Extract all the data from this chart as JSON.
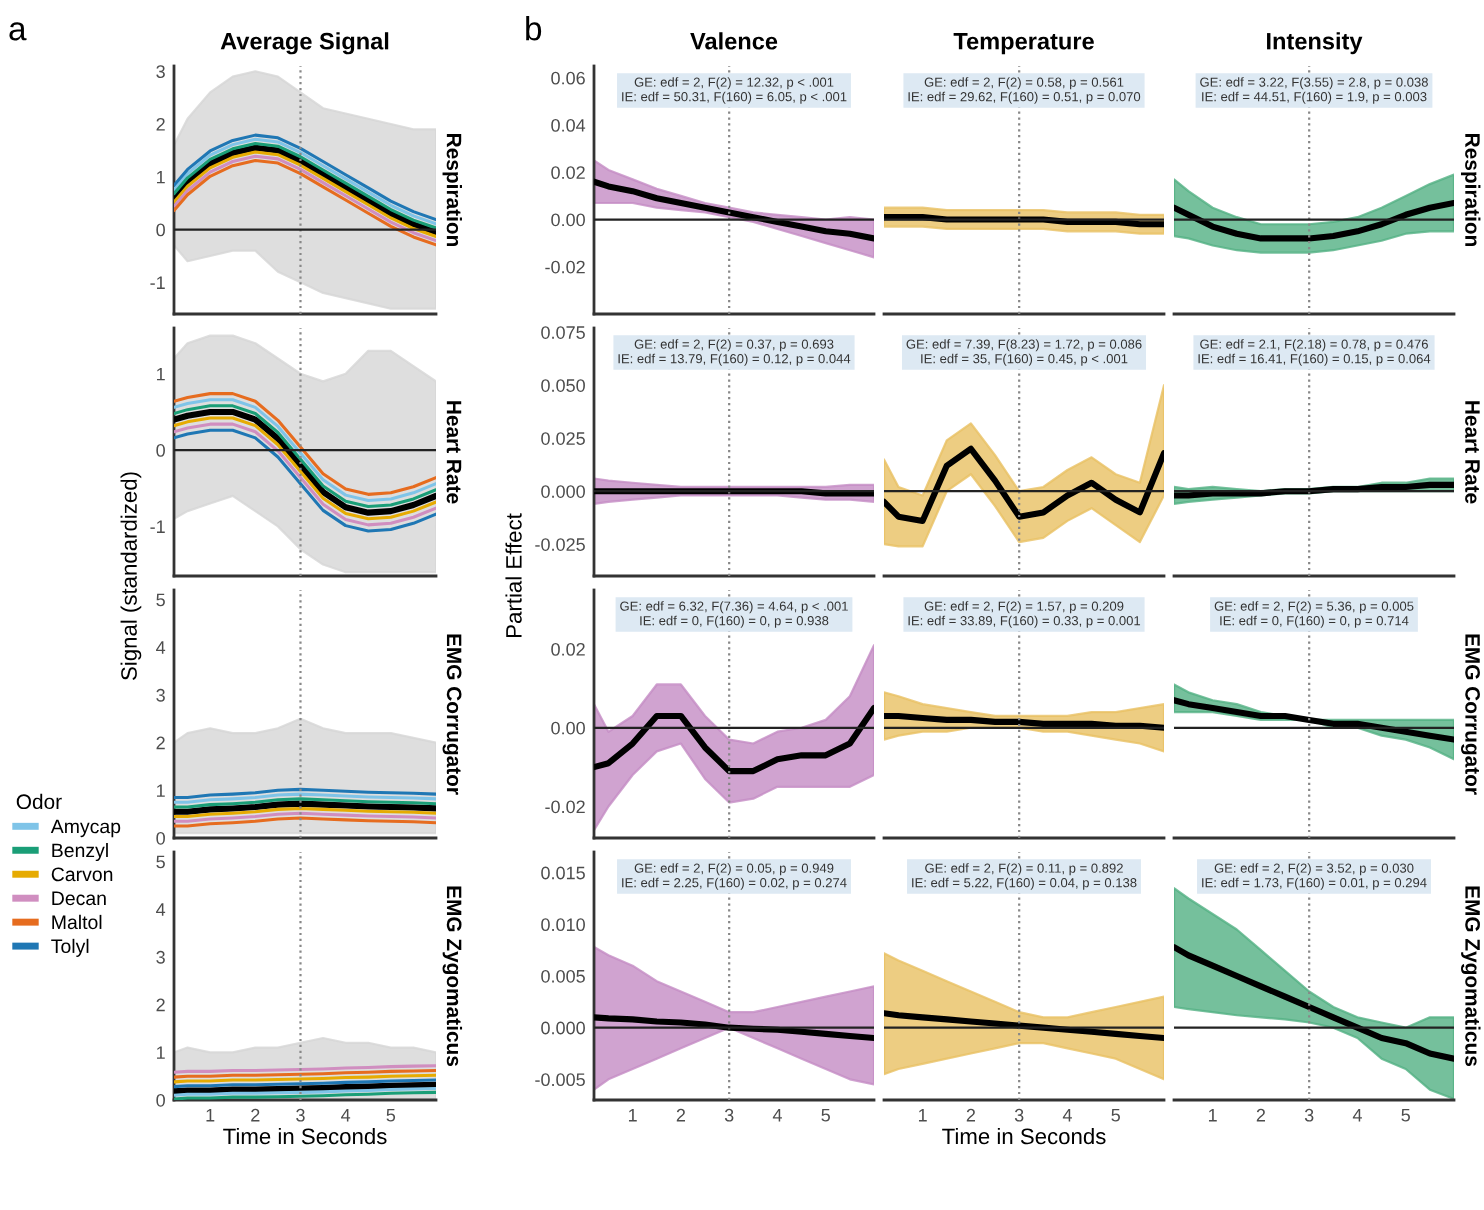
{
  "chart_data": [
    {
      "type": "line",
      "title": "Average Signal",
      "y2label": "Respiration",
      "x": [
        0.2,
        0.5,
        1,
        1.5,
        2,
        2.5,
        3,
        3.5,
        4,
        4.5,
        5,
        5.5,
        6
      ],
      "xlim": [
        0.2,
        6
      ],
      "ylim": [
        -1.6,
        3.1
      ],
      "yticks": [
        -1,
        0,
        1,
        2,
        3
      ],
      "tick_labels": "y",
      "color": "#d6d6d6",
      "series": [
        {
          "color": "#7fc4e8",
          "values": [
            0.76,
            1.06,
            1.41,
            1.61,
            1.71,
            1.66,
            1.46,
            1.21,
            0.96,
            0.71,
            0.46,
            0.26,
            0.11
          ]
        },
        {
          "color": "#1a9e77",
          "values": [
            0.68,
            0.98,
            1.33,
            1.53,
            1.63,
            1.58,
            1.38,
            1.13,
            0.88,
            0.63,
            0.38,
            0.18,
            0.03
          ]
        },
        {
          "color": "#e6ab02",
          "values": [
            0.52,
            0.82,
            1.17,
            1.37,
            1.47,
            1.42,
            1.22,
            0.97,
            0.72,
            0.47,
            0.22,
            0.02,
            -0.13
          ]
        },
        {
          "color": "#d08ec0",
          "values": [
            0.44,
            0.74,
            1.09,
            1.29,
            1.39,
            1.34,
            1.14,
            0.89,
            0.64,
            0.39,
            0.14,
            -0.06,
            -0.21
          ]
        },
        {
          "color": "#e66c1f",
          "values": [
            0.36,
            0.66,
            1.01,
            1.21,
            1.31,
            1.26,
            1.06,
            0.81,
            0.56,
            0.31,
            0.06,
            -0.14,
            -0.29
          ]
        },
        {
          "color": "#1f77b4",
          "values": [
            0.84,
            1.14,
            1.49,
            1.69,
            1.79,
            1.74,
            1.54,
            1.29,
            1.04,
            0.79,
            0.54,
            0.34,
            0.19
          ]
        },
        {
          "color": "#000000",
          "values": [
            0.6,
            0.9,
            1.25,
            1.45,
            1.55,
            1.5,
            1.3,
            1.05,
            0.8,
            0.55,
            0.3,
            0.1,
            -0.05
          ],
          "lower": [
            -0.3,
            -0.6,
            -0.5,
            -0.4,
            -0.4,
            -0.8,
            -1.0,
            -1.2,
            -1.3,
            -1.4,
            -1.5,
            -1.5,
            -1.5
          ],
          "upper": [
            1.6,
            2.1,
            2.6,
            2.9,
            3.0,
            2.9,
            2.6,
            2.3,
            2.2,
            2.1,
            2.0,
            1.9,
            1.9
          ]
        }
      ],
      "ref_lines": [
        {
          "axis": "x",
          "value": 3,
          "color": "#888888",
          "line_style": "dotted"
        },
        {
          "axis": "y",
          "value": 0,
          "color": "#222222",
          "line_style": "solid"
        }
      ]
    },
    {
      "type": "line",
      "y2label": "Heart Rate",
      "ylabel": "Signal (standardized)",
      "x": [
        0.2,
        0.5,
        1,
        1.5,
        2,
        2.5,
        3,
        3.5,
        4,
        4.5,
        5,
        5.5,
        6
      ],
      "xlim": [
        0.2,
        6
      ],
      "ylim": [
        -1.65,
        1.6
      ],
      "yticks": [
        -1,
        0,
        1
      ],
      "tick_labels": "y",
      "color": "#d6d6d6",
      "series": [
        {
          "color": "#7fc4e8",
          "values": [
            0.56,
            0.61,
            0.66,
            0.66,
            0.56,
            0.31,
            -0.04,
            -0.39,
            -0.59,
            -0.66,
            -0.64,
            -0.56,
            -0.44
          ]
        },
        {
          "color": "#1a9e77",
          "values": [
            0.48,
            0.53,
            0.58,
            0.58,
            0.48,
            0.23,
            -0.12,
            -0.47,
            -0.67,
            -0.74,
            -0.72,
            -0.64,
            -0.52
          ]
        },
        {
          "color": "#e6ab02",
          "values": [
            0.32,
            0.37,
            0.42,
            0.42,
            0.32,
            0.07,
            -0.28,
            -0.63,
            -0.83,
            -0.9,
            -0.88,
            -0.8,
            -0.68
          ]
        },
        {
          "color": "#d08ec0",
          "values": [
            0.24,
            0.29,
            0.34,
            0.34,
            0.24,
            -0.01,
            -0.36,
            -0.71,
            -0.91,
            -0.98,
            -0.96,
            -0.88,
            -0.76
          ]
        },
        {
          "color": "#e66c1f",
          "values": [
            0.64,
            0.69,
            0.74,
            0.74,
            0.64,
            0.39,
            0.04,
            -0.31,
            -0.51,
            -0.58,
            -0.56,
            -0.48,
            -0.36
          ]
        },
        {
          "color": "#1f77b4",
          "values": [
            0.16,
            0.21,
            0.26,
            0.26,
            0.16,
            -0.09,
            -0.44,
            -0.79,
            -0.99,
            -1.06,
            -1.04,
            -0.96,
            -0.84
          ]
        },
        {
          "color": "#000000",
          "values": [
            0.4,
            0.45,
            0.5,
            0.5,
            0.4,
            0.15,
            -0.2,
            -0.55,
            -0.75,
            -0.82,
            -0.8,
            -0.72,
            -0.6
          ],
          "lower": [
            -0.9,
            -0.8,
            -0.7,
            -0.6,
            -0.8,
            -1.0,
            -1.3,
            -1.5,
            -1.6,
            -1.6,
            -1.6,
            -1.6,
            -1.6
          ],
          "upper": [
            1.2,
            1.4,
            1.5,
            1.5,
            1.4,
            1.2,
            1.0,
            0.9,
            1.0,
            1.3,
            1.3,
            1.1,
            0.9
          ]
        }
      ],
      "ref_lines": [
        {
          "axis": "x",
          "value": 3,
          "color": "#888888",
          "line_style": "dotted"
        },
        {
          "axis": "y",
          "value": 0,
          "color": "#222222",
          "line_style": "solid"
        }
      ]
    },
    {
      "type": "line",
      "y2label": "EMG Corrugator",
      "x": [
        0.2,
        0.5,
        1,
        1.5,
        2,
        2.5,
        3,
        3.5,
        4,
        4.5,
        5,
        5.5,
        6
      ],
      "xlim": [
        0.2,
        6
      ],
      "ylim": [
        0,
        5.2
      ],
      "yticks": [
        0,
        1,
        2,
        3,
        4,
        5
      ],
      "tick_labels": "y",
      "color": "#d6d6d6",
      "legend": "left",
      "legend_title": "Odor",
      "series": [
        {
          "name": "Amycap",
          "color": "#7fc4e8",
          "values": [
            0.75,
            0.75,
            0.8,
            0.82,
            0.85,
            0.9,
            0.92,
            0.9,
            0.88,
            0.86,
            0.85,
            0.84,
            0.82
          ]
        },
        {
          "name": "Benzyl",
          "color": "#1a9e77",
          "values": [
            0.65,
            0.65,
            0.7,
            0.72,
            0.75,
            0.8,
            0.82,
            0.8,
            0.78,
            0.76,
            0.75,
            0.74,
            0.72
          ]
        },
        {
          "name": "Carvon",
          "color": "#e6ab02",
          "values": [
            0.45,
            0.45,
            0.5,
            0.52,
            0.55,
            0.6,
            0.62,
            0.6,
            0.58,
            0.56,
            0.55,
            0.54,
            0.52
          ]
        },
        {
          "name": "Decan",
          "color": "#d08ec0",
          "values": [
            0.35,
            0.35,
            0.4,
            0.42,
            0.45,
            0.5,
            0.52,
            0.5,
            0.48,
            0.46,
            0.45,
            0.44,
            0.42
          ]
        },
        {
          "name": "Maltol",
          "color": "#e66c1f",
          "values": [
            0.25,
            0.25,
            0.3,
            0.32,
            0.35,
            0.4,
            0.42,
            0.4,
            0.38,
            0.36,
            0.35,
            0.34,
            0.32
          ]
        },
        {
          "name": "Tolyl",
          "color": "#1f77b4",
          "values": [
            0.85,
            0.85,
            0.9,
            0.92,
            0.95,
            1.0,
            1.02,
            1.0,
            0.98,
            0.96,
            0.95,
            0.94,
            0.92
          ]
        },
        {
          "color": "#000000",
          "values": [
            0.55,
            0.55,
            0.6,
            0.62,
            0.65,
            0.7,
            0.72,
            0.7,
            0.68,
            0.66,
            0.65,
            0.64,
            0.62
          ],
          "lower": [
            0.1,
            0.1,
            0.1,
            0.1,
            0.1,
            0.1,
            0.1,
            0.1,
            0.1,
            0.1,
            0.1,
            0.1,
            0.1
          ],
          "upper": [
            2.0,
            2.2,
            2.3,
            2.2,
            2.2,
            2.3,
            2.5,
            2.3,
            2.2,
            2.2,
            2.2,
            2.1,
            2.0
          ]
        }
      ],
      "ref_lines": [
        {
          "axis": "x",
          "value": 3,
          "color": "#888888",
          "line_style": "dotted"
        }
      ]
    },
    {
      "type": "line",
      "y2label": "EMG Zygomaticus",
      "xlabel": "Time in Seconds",
      "x": [
        0.2,
        0.5,
        1,
        1.5,
        2,
        2.5,
        3,
        3.5,
        4,
        4.5,
        5,
        5.5,
        6
      ],
      "xlim": [
        0.2,
        6
      ],
      "xticks": [
        1,
        2,
        3,
        4,
        5
      ],
      "ylim": [
        0,
        5.2
      ],
      "yticks": [
        0,
        1,
        2,
        3,
        4,
        5
      ],
      "color": "#d6d6d6",
      "series": [
        {
          "color": "#7fc4e8",
          "values": [
            0.1,
            0.12,
            0.12,
            0.14,
            0.14,
            0.15,
            0.16,
            0.17,
            0.19,
            0.2,
            0.22,
            0.23,
            0.24
          ]
        },
        {
          "color": "#1a9e77",
          "values": [
            0.02,
            0.04,
            0.04,
            0.06,
            0.06,
            0.07,
            0.08,
            0.09,
            0.11,
            0.12,
            0.14,
            0.15,
            0.16
          ]
        },
        {
          "color": "#e6ab02",
          "values": [
            0.38,
            0.4,
            0.4,
            0.42,
            0.42,
            0.43,
            0.44,
            0.45,
            0.47,
            0.48,
            0.5,
            0.51,
            0.52
          ]
        },
        {
          "color": "#d08ec0",
          "values": [
            0.58,
            0.6,
            0.6,
            0.62,
            0.62,
            0.63,
            0.64,
            0.65,
            0.67,
            0.68,
            0.7,
            0.71,
            0.72
          ]
        },
        {
          "color": "#e66c1f",
          "values": [
            0.48,
            0.5,
            0.5,
            0.52,
            0.52,
            0.53,
            0.54,
            0.55,
            0.57,
            0.58,
            0.6,
            0.61,
            0.62
          ]
        },
        {
          "color": "#1f77b4",
          "values": [
            0.28,
            0.3,
            0.3,
            0.32,
            0.32,
            0.33,
            0.34,
            0.35,
            0.37,
            0.38,
            0.4,
            0.41,
            0.42
          ]
        },
        {
          "color": "#000000",
          "values": [
            0.18,
            0.2,
            0.2,
            0.22,
            0.22,
            0.23,
            0.24,
            0.25,
            0.27,
            0.28,
            0.3,
            0.31,
            0.32
          ],
          "lower": [
            0.02,
            0.02,
            0.02,
            0.02,
            0.02,
            0.02,
            0.02,
            0.02,
            0.02,
            0.02,
            0.02,
            0.02,
            0.02
          ],
          "upper": [
            1.0,
            1.1,
            1.0,
            1.0,
            1.1,
            1.1,
            1.2,
            1.3,
            1.2,
            1.2,
            1.1,
            1.1,
            1.0
          ]
        }
      ],
      "ref_lines": [
        {
          "axis": "x",
          "value": 3,
          "color": "#888888",
          "line_style": "dotted"
        }
      ]
    },
    {
      "type": "line",
      "title": "Valence",
      "x": [
        0.2,
        0.5,
        1,
        1.5,
        2,
        2.5,
        3,
        3.5,
        4,
        4.5,
        5,
        5.5,
        6
      ],
      "xlim": [
        0.2,
        6
      ],
      "ylim": [
        -0.04,
        0.065
      ],
      "yticks": [
        -0.02,
        {
          "value": 0,
          "label": "0.00"
        },
        0.02,
        0.04,
        0.06
      ],
      "tick_labels": "y",
      "color": "#c48cc4",
      "annotations": [
        "GE: edf = 2, F(2) = 12.32, p < .001",
        "IE: edf = 50.31, F(160) = 6.05, p < .001"
      ],
      "series": [
        {
          "color": "#000000",
          "values": [
            0.016,
            0.014,
            0.012,
            0.009,
            0.007,
            0.005,
            0.003,
            0.001,
            -0.001,
            -0.003,
            -0.005,
            -0.006,
            -0.008
          ],
          "lower": [
            0.007,
            0.007,
            0.007,
            0.005,
            0.004,
            0.003,
            0.001,
            -0.001,
            -0.004,
            -0.007,
            -0.01,
            -0.013,
            -0.016
          ],
          "upper": [
            0.025,
            0.021,
            0.017,
            0.013,
            0.01,
            0.007,
            0.005,
            0.003,
            0.002,
            0.001,
            0.0,
            0.001,
            0.0
          ]
        }
      ],
      "ref_lines": [
        {
          "axis": "x",
          "value": 3,
          "color": "#888888",
          "line_style": "dotted"
        },
        {
          "axis": "y",
          "value": 0,
          "color": "#222222",
          "line_style": "solid"
        }
      ]
    },
    {
      "type": "line",
      "title": "Temperature",
      "x": [
        0.2,
        0.5,
        1,
        1.5,
        2,
        2.5,
        3,
        3.5,
        4,
        4.5,
        5,
        5.5,
        6
      ],
      "xlim": [
        0.2,
        6
      ],
      "ylim": [
        -0.04,
        0.065
      ],
      "tick_labels": false,
      "color": "#e8c063",
      "annotations": [
        "GE: edf = 2, F(2) = 0.58, p = 0.561",
        "IE: edf = 29.62, F(160) = 0.51, p = 0.070"
      ],
      "series": [
        {
          "color": "#000000",
          "values": [
            0.001,
            0.001,
            0.001,
            0.0,
            0.0,
            0.0,
            0.0,
            0.0,
            -0.001,
            -0.001,
            -0.001,
            -0.002,
            -0.002
          ],
          "lower": [
            -0.003,
            -0.003,
            -0.003,
            -0.004,
            -0.004,
            -0.004,
            -0.004,
            -0.004,
            -0.005,
            -0.005,
            -0.005,
            -0.006,
            -0.006
          ],
          "upper": [
            0.005,
            0.005,
            0.005,
            0.004,
            0.004,
            0.004,
            0.004,
            0.004,
            0.003,
            0.003,
            0.003,
            0.002,
            0.002
          ]
        }
      ],
      "ref_lines": [
        {
          "axis": "x",
          "value": 3,
          "color": "#888888",
          "line_style": "dotted"
        },
        {
          "axis": "y",
          "value": 0,
          "color": "#222222",
          "line_style": "solid"
        }
      ]
    },
    {
      "type": "line",
      "title": "Intensity",
      "y2label": "Respiration",
      "x": [
        0.2,
        0.5,
        1,
        1.5,
        2,
        2.5,
        3,
        3.5,
        4,
        4.5,
        5,
        5.5,
        6
      ],
      "xlim": [
        0.2,
        6
      ],
      "ylim": [
        -0.04,
        0.065
      ],
      "tick_labels": false,
      "color": "#52b083",
      "annotations": [
        "GE: edf = 3.22, F(3.55) = 2.8, p = 0.038",
        "IE: edf = 44.51, F(160) = 1.9, p = 0.003"
      ],
      "series": [
        {
          "color": "#000000",
          "values": [
            0.005,
            0.002,
            -0.003,
            -0.006,
            -0.008,
            -0.008,
            -0.008,
            -0.007,
            -0.005,
            -0.002,
            0.002,
            0.005,
            0.007
          ],
          "lower": [
            -0.007,
            -0.008,
            -0.011,
            -0.013,
            -0.014,
            -0.014,
            -0.014,
            -0.013,
            -0.011,
            -0.009,
            -0.006,
            -0.005,
            -0.005
          ],
          "upper": [
            0.017,
            0.012,
            0.005,
            0.001,
            -0.002,
            -0.002,
            -0.002,
            -0.001,
            0.001,
            0.005,
            0.01,
            0.015,
            0.019
          ]
        }
      ],
      "ref_lines": [
        {
          "axis": "x",
          "value": 3,
          "color": "#888888",
          "line_style": "dotted"
        },
        {
          "axis": "y",
          "value": 0,
          "color": "#222222",
          "line_style": "solid"
        }
      ]
    },
    {
      "type": "line",
      "ylabel": "Partial Effect",
      "x": [
        0.2,
        0.5,
        1,
        1.5,
        2,
        2.5,
        3,
        3.5,
        4,
        4.5,
        5,
        5.5,
        6
      ],
      "xlim": [
        0.2,
        6
      ],
      "ylim": [
        -0.04,
        0.077
      ],
      "yticks": [
        -0.025,
        {
          "value": 0,
          "label": "0.000"
        },
        0.025,
        {
          "value": 0.05,
          "label": "0.050"
        },
        0.075
      ],
      "tick_labels": "y",
      "color": "#c48cc4",
      "annotations": [
        "GE: edf = 2, F(2) = 0.37, p = 0.693",
        "IE: edf = 13.79, F(160) = 0.12, p = 0.044"
      ],
      "series": [
        {
          "color": "#000000",
          "values": [
            0.0,
            0.0,
            0.0,
            0.0,
            0.0,
            0.0,
            0.0,
            0.0,
            0.0,
            0.0,
            -0.001,
            -0.001,
            -0.001
          ],
          "lower": [
            -0.006,
            -0.005,
            -0.004,
            -0.003,
            -0.002,
            -0.002,
            -0.002,
            -0.002,
            -0.002,
            -0.003,
            -0.004,
            -0.004,
            -0.005
          ],
          "upper": [
            0.006,
            0.005,
            0.004,
            0.003,
            0.002,
            0.002,
            0.002,
            0.002,
            0.002,
            0.002,
            0.002,
            0.003,
            0.003
          ]
        }
      ],
      "ref_lines": [
        {
          "axis": "x",
          "value": 3,
          "color": "#888888",
          "line_style": "dotted"
        },
        {
          "axis": "y",
          "value": 0,
          "color": "#222222",
          "line_style": "solid"
        }
      ]
    },
    {
      "type": "line",
      "x": [
        0.2,
        0.5,
        1,
        1.5,
        2,
        2.5,
        3,
        3.5,
        4,
        4.5,
        5,
        5.5,
        6
      ],
      "xlim": [
        0.2,
        6
      ],
      "ylim": [
        -0.04,
        0.077
      ],
      "tick_labels": false,
      "color": "#e8c063",
      "annotations": [
        "GE: edf = 7.39, F(8.23) = 1.72, p = 0.086",
        "IE: edf = 35, F(160) = 0.45, p < .001"
      ],
      "series": [
        {
          "color": "#000000",
          "values": [
            -0.005,
            -0.012,
            -0.014,
            0.012,
            0.02,
            0.005,
            -0.012,
            -0.01,
            -0.002,
            0.004,
            -0.004,
            -0.01,
            0.018
          ],
          "lower": [
            -0.025,
            -0.026,
            -0.026,
            0.0,
            0.008,
            -0.007,
            -0.024,
            -0.022,
            -0.014,
            -0.008,
            -0.016,
            -0.024,
            -0.002
          ],
          "upper": [
            0.015,
            0.002,
            -0.002,
            0.024,
            0.032,
            0.017,
            0.0,
            0.002,
            0.01,
            0.016,
            0.008,
            0.004,
            0.05
          ]
        }
      ],
      "ref_lines": [
        {
          "axis": "x",
          "value": 3,
          "color": "#888888",
          "line_style": "dotted"
        },
        {
          "axis": "y",
          "value": 0,
          "color": "#222222",
          "line_style": "solid"
        }
      ]
    },
    {
      "type": "line",
      "y2label": "Heart Rate",
      "x": [
        0.2,
        0.5,
        1,
        1.5,
        2,
        2.5,
        3,
        3.5,
        4,
        4.5,
        5,
        5.5,
        6
      ],
      "xlim": [
        0.2,
        6
      ],
      "ylim": [
        -0.04,
        0.077
      ],
      "tick_labels": false,
      "color": "#52b083",
      "annotations": [
        "GE: edf = 2.1, F(2.18) = 0.78, p = 0.476",
        "IE: edf = 16.41, F(160) = 0.15, p = 0.064"
      ],
      "series": [
        {
          "color": "#000000",
          "values": [
            -0.002,
            -0.002,
            -0.001,
            -0.001,
            -0.001,
            0.0,
            0.0,
            0.001,
            0.001,
            0.002,
            0.002,
            0.003,
            0.003
          ],
          "lower": [
            -0.006,
            -0.005,
            -0.004,
            -0.003,
            -0.002,
            -0.001,
            -0.001,
            0.0,
            0.0,
            0.0,
            0.0,
            0.0,
            0.0
          ],
          "upper": [
            0.002,
            0.001,
            0.002,
            0.001,
            0.0,
            0.001,
            0.001,
            0.002,
            0.002,
            0.004,
            0.004,
            0.006,
            0.006
          ]
        }
      ],
      "ref_lines": [
        {
          "axis": "x",
          "value": 3,
          "color": "#888888",
          "line_style": "dotted"
        },
        {
          "axis": "y",
          "value": 0,
          "color": "#222222",
          "line_style": "solid"
        }
      ]
    },
    {
      "type": "line",
      "x": [
        0.2,
        0.5,
        1,
        1.5,
        2,
        2.5,
        3,
        3.5,
        4,
        4.5,
        5,
        5.5,
        6
      ],
      "xlim": [
        0.2,
        6
      ],
      "ylim": [
        -0.028,
        0.035
      ],
      "yticks": [
        -0.02,
        {
          "value": 0,
          "label": "0.00"
        },
        0.02
      ],
      "tick_labels": "y",
      "color": "#c48cc4",
      "annotations": [
        "GE: edf = 6.32, F(7.36) = 4.64, p < .001",
        "IE: edf = 0, F(160) = 0, p = 0.938"
      ],
      "series": [
        {
          "color": "#000000",
          "values": [
            -0.01,
            -0.009,
            -0.004,
            0.003,
            0.003,
            -0.005,
            -0.011,
            -0.011,
            -0.008,
            -0.007,
            -0.007,
            -0.004,
            0.005
          ],
          "lower": [
            -0.026,
            -0.02,
            -0.012,
            -0.006,
            -0.004,
            -0.013,
            -0.019,
            -0.018,
            -0.015,
            -0.015,
            -0.015,
            -0.015,
            -0.012
          ],
          "upper": [
            0.006,
            -0.001,
            0.003,
            0.011,
            0.011,
            0.003,
            -0.003,
            -0.004,
            -0.001,
            0.0,
            0.002,
            0.008,
            0.021
          ]
        }
      ],
      "ref_lines": [
        {
          "axis": "x",
          "value": 3,
          "color": "#888888",
          "line_style": "dotted"
        },
        {
          "axis": "y",
          "value": 0,
          "color": "#222222",
          "line_style": "solid"
        }
      ]
    },
    {
      "type": "line",
      "x": [
        0.2,
        0.5,
        1,
        1.5,
        2,
        2.5,
        3,
        3.5,
        4,
        4.5,
        5,
        5.5,
        6
      ],
      "xlim": [
        0.2,
        6
      ],
      "ylim": [
        -0.028,
        0.035
      ],
      "tick_labels": false,
      "color": "#e8c063",
      "annotations": [
        "GE: edf = 2, F(2) = 1.57, p = 0.209",
        "IE: edf = 33.89, F(160) = 0.33, p = 0.001"
      ],
      "series": [
        {
          "color": "#000000",
          "values": [
            0.003,
            0.003,
            0.0025,
            0.002,
            0.002,
            0.0015,
            0.0015,
            0.001,
            0.001,
            0.001,
            0.0005,
            0.0005,
            0.0
          ],
          "lower": [
            -0.003,
            -0.002,
            -0.001,
            -0.001,
            0.0,
            0.0,
            0.0,
            -0.001,
            -0.001,
            -0.002,
            -0.003,
            -0.004,
            -0.006
          ],
          "upper": [
            0.009,
            0.008,
            0.006,
            0.005,
            0.004,
            0.003,
            0.003,
            0.003,
            0.003,
            0.004,
            0.004,
            0.005,
            0.006
          ]
        }
      ],
      "ref_lines": [
        {
          "axis": "x",
          "value": 3,
          "color": "#888888",
          "line_style": "dotted"
        },
        {
          "axis": "y",
          "value": 0,
          "color": "#222222",
          "line_style": "solid"
        }
      ]
    },
    {
      "type": "line",
      "y2label": "EMG Corrugator",
      "x": [
        0.2,
        0.5,
        1,
        1.5,
        2,
        2.5,
        3,
        3.5,
        4,
        4.5,
        5,
        5.5,
        6
      ],
      "xlim": [
        0.2,
        6
      ],
      "ylim": [
        -0.028,
        0.035
      ],
      "tick_labels": false,
      "color": "#52b083",
      "annotations": [
        "GE: edf = 2, F(2) = 5.36, p = 0.005",
        "IE: edf = 0, F(160) = 0, p = 0.714"
      ],
      "series": [
        {
          "color": "#000000",
          "values": [
            0.007,
            0.006,
            0.005,
            0.004,
            0.003,
            0.003,
            0.002,
            0.001,
            0.001,
            0.0,
            -0.001,
            -0.002,
            -0.003
          ],
          "lower": [
            0.004,
            0.004,
            0.004,
            0.003,
            0.002,
            0.002,
            0.002,
            0.0,
            0.0,
            -0.002,
            -0.003,
            -0.005,
            -0.008
          ],
          "upper": [
            0.011,
            0.009,
            0.007,
            0.006,
            0.004,
            0.003,
            0.002,
            0.002,
            0.002,
            0.002,
            0.002,
            0.002,
            0.002
          ]
        }
      ],
      "ref_lines": [
        {
          "axis": "x",
          "value": 3,
          "color": "#888888",
          "line_style": "dotted"
        },
        {
          "axis": "y",
          "value": 0,
          "color": "#222222",
          "line_style": "solid"
        }
      ]
    },
    {
      "type": "line",
      "x": [
        0.2,
        0.5,
        1,
        1.5,
        2,
        2.5,
        3,
        3.5,
        4,
        4.5,
        5,
        5.5,
        6
      ],
      "xlim": [
        0.2,
        6
      ],
      "xticks": [
        1,
        2,
        3,
        4,
        5
      ],
      "ylim": [
        -0.007,
        0.017
      ],
      "yticks": [
        -0.005,
        {
          "value": 0,
          "label": "0.000"
        },
        0.005,
        {
          "value": 0.01,
          "label": "0.010"
        },
        0.015
      ],
      "color": "#c48cc4",
      "annotations": [
        "GE: edf = 2, F(2) = 0.05, p = 0.949",
        "IE: edf = 2.25, F(160) = 0.02, p = 0.274"
      ],
      "series": [
        {
          "color": "#000000",
          "values": [
            0.001,
            0.0009,
            0.0008,
            0.0006,
            0.0005,
            0.0003,
            0.0,
            -0.0001,
            -0.0002,
            -0.0004,
            -0.0006,
            -0.0008,
            -0.001
          ],
          "lower": [
            -0.006,
            -0.005,
            -0.004,
            -0.003,
            -0.002,
            -0.001,
            0.0,
            -0.001,
            -0.002,
            -0.003,
            -0.004,
            -0.005,
            -0.0055
          ],
          "upper": [
            0.0078,
            0.007,
            0.006,
            0.0045,
            0.0035,
            0.0025,
            0.0015,
            0.0015,
            0.002,
            0.0025,
            0.003,
            0.0035,
            0.004
          ]
        }
      ],
      "ref_lines": [
        {
          "axis": "x",
          "value": 3,
          "color": "#888888",
          "line_style": "dotted"
        },
        {
          "axis": "y",
          "value": 0,
          "color": "#222222",
          "line_style": "solid"
        }
      ]
    },
    {
      "type": "line",
      "xlabel": "Time in Seconds",
      "x": [
        0.2,
        0.5,
        1,
        1.5,
        2,
        2.5,
        3,
        3.5,
        4,
        4.5,
        5,
        5.5,
        6
      ],
      "xlim": [
        0.2,
        6
      ],
      "xticks": [
        1,
        2,
        3,
        4,
        5
      ],
      "ylim": [
        -0.007,
        0.017
      ],
      "tick_labels": "x",
      "color": "#e8c063",
      "annotations": [
        "GE: edf = 2, F(2) = 0.11, p = 0.892",
        "IE: edf = 5.22, F(160) = 0.04, p = 0.138"
      ],
      "series": [
        {
          "color": "#000000",
          "values": [
            0.0014,
            0.0012,
            0.001,
            0.0008,
            0.0006,
            0.0004,
            0.0002,
            0.0,
            -0.0002,
            -0.0004,
            -0.0006,
            -0.0008,
            -0.001
          ],
          "lower": [
            -0.0045,
            -0.004,
            -0.0035,
            -0.003,
            -0.0025,
            -0.002,
            -0.0015,
            -0.0015,
            -0.002,
            -0.0025,
            -0.003,
            -0.004,
            -0.005
          ],
          "upper": [
            0.0072,
            0.0065,
            0.0055,
            0.0045,
            0.0035,
            0.0025,
            0.0015,
            0.001,
            0.001,
            0.0015,
            0.002,
            0.0025,
            0.003
          ]
        }
      ],
      "ref_lines": [
        {
          "axis": "x",
          "value": 3,
          "color": "#888888",
          "line_style": "dotted"
        },
        {
          "axis": "y",
          "value": 0,
          "color": "#222222",
          "line_style": "solid"
        }
      ]
    },
    {
      "type": "line",
      "y2label": "EMG Zygomaticus",
      "x": [
        0.2,
        0.5,
        1,
        1.5,
        2,
        2.5,
        3,
        3.5,
        4,
        4.5,
        5,
        5.5,
        6
      ],
      "xlim": [
        0.2,
        6
      ],
      "xticks": [
        1,
        2,
        3,
        4,
        5
      ],
      "ylim": [
        -0.007,
        0.017
      ],
      "tick_labels": "x",
      "color": "#52b083",
      "annotations": [
        "GE: edf = 2, F(2) = 3.52, p = 0.030",
        "IE: edf = 1.73, F(160) = 0.01, p = 0.294"
      ],
      "series": [
        {
          "color": "#000000",
          "values": [
            0.0078,
            0.007,
            0.006,
            0.005,
            0.004,
            0.003,
            0.002,
            0.001,
            0.0,
            -0.001,
            -0.0015,
            -0.0025,
            -0.003
          ],
          "lower": [
            0.002,
            0.0018,
            0.0015,
            0.0012,
            0.001,
            0.0008,
            0.0005,
            0.0,
            -0.001,
            -0.003,
            -0.004,
            -0.006,
            -0.0069
          ],
          "upper": [
            0.0135,
            0.0125,
            0.011,
            0.0095,
            0.0075,
            0.0055,
            0.0035,
            0.002,
            0.001,
            0.0005,
            0.0,
            0.001,
            0.001
          ]
        }
      ],
      "ref_lines": [
        {
          "axis": "x",
          "value": 3,
          "color": "#888888",
          "line_style": "dotted"
        },
        {
          "axis": "y",
          "value": 0,
          "color": "#222222",
          "line_style": "solid"
        }
      ]
    },
    {
      "type": "other",
      "annotations": [
        "a",
        "b"
      ]
    }
  ]
}
